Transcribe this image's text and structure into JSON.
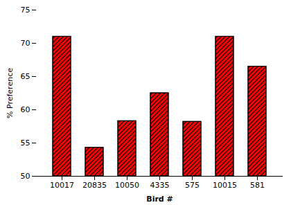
{
  "chart_data": {
    "type": "bar",
    "categories": [
      "10017",
      "20835",
      "10050",
      "4335",
      "575",
      "10015",
      "581"
    ],
    "values": [
      71.0,
      54.3,
      58.3,
      62.5,
      58.2,
      71.0,
      66.5
    ],
    "color": "#ff0000",
    "xlabel": "Bird #",
    "ylabel": "% Preference",
    "ylim": [
      50,
      75
    ],
    "yticks": [
      50,
      55,
      60,
      65,
      70,
      75
    ],
    "grid": false
  }
}
